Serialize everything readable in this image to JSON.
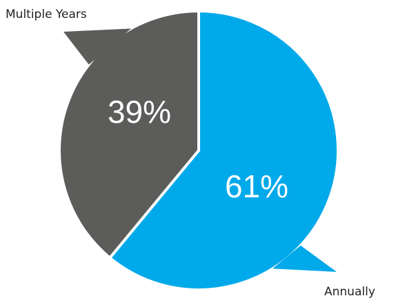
{
  "chart_data": {
    "type": "pie",
    "title": "",
    "slices": [
      {
        "label": "Annually",
        "value": 61,
        "value_label": "61%",
        "color": "#00a9ea"
      },
      {
        "label": "Multiple Years",
        "value": 39,
        "value_label": "39%",
        "color": "#5c5c5a"
      }
    ],
    "start_angle": "12 o'clock, clockwise",
    "legend": "none (callout labels on speech-bubble tails)"
  }
}
